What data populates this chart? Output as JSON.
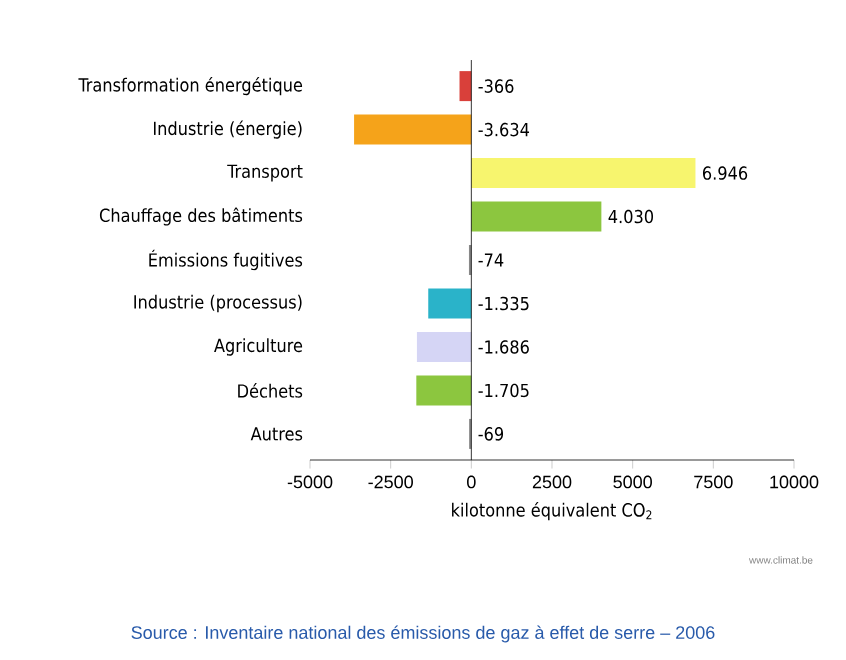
{
  "chart_data": {
    "type": "bar",
    "orientation": "horizontal",
    "xlabel": "kilotonne équivalent CO$_{2}$",
    "categories": [
      "Transformation énergétique",
      "Industrie (énergie)",
      "Transport",
      "Chauffage des bâtiments",
      "Émissions fugitives",
      "Industrie (processus)",
      "Agriculture",
      "Déchets",
      "Autres"
    ],
    "values": [
      -366,
      -3634,
      6946,
      4030,
      -74,
      -1335,
      -1686,
      -1705,
      -69
    ],
    "colors": [
      "#d9403a",
      "#f5a31a",
      "#f7f56e",
      "#8cc63f",
      "#888888",
      "#2ab3c9",
      "#d5d5f5",
      "#8cc63f",
      "#888888"
    ],
    "value_labels": [
      "-366",
      "-3.634",
      "6.946",
      "4.030",
      "-74",
      "-1.335",
      "-1.686",
      "-1.705",
      "-69"
    ],
    "xlim": [
      -5000,
      10000
    ],
    "xticks": [
      -5000,
      -2500,
      0,
      2500,
      5000,
      7500,
      10000
    ],
    "annotations": [
      "www.climat.be",
      "Source : Inventaire national des émissions de gaz à effet de serre – 2006"
    ]
  }
}
